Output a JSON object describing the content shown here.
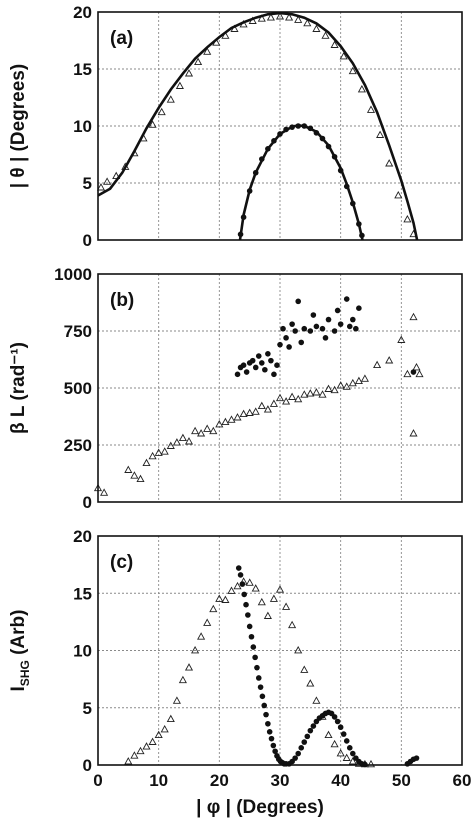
{
  "chart_data": [
    {
      "type": "scatter",
      "panel_label": "(a)",
      "ylabel": "| θ |  (Degrees)",
      "xlim": [
        0,
        60
      ],
      "ylim": [
        0,
        20
      ],
      "xticks": [
        0,
        10,
        20,
        30,
        40,
        50,
        60
      ],
      "yticks": [
        0,
        5,
        10,
        15,
        20
      ],
      "ytick_labels": [
        "0",
        "5",
        "10",
        "15",
        "20"
      ],
      "grid": true,
      "series": [
        {
          "marker": "triangle-open",
          "x": [
            0.5,
            1.5,
            3,
            4.5,
            6,
            7.5,
            9,
            10.5,
            12,
            13.5,
            15,
            16.5,
            18,
            19.5,
            21,
            22.5,
            24,
            25.5,
            27,
            28.5,
            30,
            31.5,
            33,
            34.5,
            36,
            37.5,
            39,
            40.5,
            42,
            43.5,
            45,
            46.5,
            48,
            49.5,
            51,
            52
          ],
          "y": [
            4.6,
            5.1,
            5.6,
            6.4,
            7.6,
            8.9,
            10.1,
            11.2,
            12.3,
            13.5,
            14.6,
            15.6,
            16.5,
            17.3,
            17.9,
            18.5,
            18.9,
            19.2,
            19.4,
            19.5,
            19.6,
            19.5,
            19.3,
            19.0,
            18.5,
            17.9,
            17.1,
            16.1,
            14.8,
            13.2,
            11.4,
            9.2,
            6.7,
            3.9,
            1.8,
            0.5
          ]
        },
        {
          "marker": "circle-filled",
          "x": [
            23.5,
            24,
            25,
            26,
            27,
            28,
            29,
            30,
            31,
            32,
            33,
            34,
            35,
            36,
            37,
            38,
            39,
            40,
            41,
            42,
            43,
            43.5
          ],
          "y": [
            0.5,
            2.0,
            4.3,
            5.9,
            7.1,
            8.0,
            8.7,
            9.3,
            9.7,
            9.9,
            10.0,
            10.0,
            9.8,
            9.4,
            8.9,
            8.2,
            7.3,
            6.1,
            4.7,
            3.2,
            1.4,
            0.4
          ]
        },
        {
          "marker": "line",
          "x": [
            0,
            2,
            4,
            6,
            8,
            10,
            12,
            14,
            16,
            18,
            20,
            22,
            24,
            26,
            28,
            30,
            32,
            34,
            36,
            38,
            40,
            42,
            44,
            46,
            48,
            50,
            51,
            52,
            52.6
          ],
          "y": [
            3.9,
            4.5,
            5.9,
            7.8,
            9.8,
            11.6,
            13.2,
            14.6,
            15.9,
            16.9,
            17.8,
            18.6,
            19.1,
            19.5,
            19.8,
            19.9,
            19.8,
            19.5,
            19.0,
            18.2,
            17.0,
            15.5,
            13.6,
            11.2,
            8.3,
            5.2,
            3.4,
            1.5,
            0
          ]
        },
        {
          "marker": "line",
          "x": [
            23.4,
            24,
            25,
            26,
            28,
            30,
            32,
            33,
            34,
            36,
            38,
            40,
            41,
            42,
            43,
            43.6
          ],
          "y": [
            0,
            2.2,
            4.4,
            5.9,
            8.0,
            9.3,
            9.95,
            10.05,
            10.0,
            9.5,
            8.3,
            6.3,
            4.9,
            3.3,
            1.4,
            0
          ]
        }
      ]
    },
    {
      "type": "scatter",
      "panel_label": "(b)",
      "ylabel": "β L (rad⁻¹)",
      "xlim": [
        0,
        60
      ],
      "ylim": [
        0,
        1000
      ],
      "xticks": [
        0,
        10,
        20,
        30,
        40,
        50,
        60
      ],
      "yticks": [
        0,
        250,
        500,
        750,
        1000
      ],
      "ytick_labels": [
        "0",
        "250",
        "500",
        "750",
        "1000"
      ],
      "grid": true,
      "series": [
        {
          "marker": "triangle-open",
          "x": [
            0,
            1,
            5,
            6,
            7,
            8,
            9,
            10,
            11,
            12,
            13,
            14,
            15,
            16,
            17,
            18,
            19,
            20,
            21,
            22,
            23,
            24,
            25,
            26,
            27,
            28,
            29,
            30,
            31,
            32,
            33,
            34,
            35,
            36,
            37,
            38,
            39,
            40,
            41,
            42,
            43,
            44,
            46,
            48,
            50,
            51,
            52,
            52,
            52.5,
            53
          ],
          "y": [
            60,
            40,
            140,
            115,
            100,
            170,
            200,
            215,
            220,
            245,
            260,
            280,
            265,
            310,
            300,
            320,
            310,
            340,
            350,
            360,
            370,
            385,
            390,
            395,
            420,
            405,
            430,
            455,
            440,
            460,
            450,
            470,
            475,
            480,
            470,
            495,
            490,
            510,
            505,
            520,
            530,
            540,
            600,
            620,
            710,
            560,
            810,
            300,
            590,
            560
          ]
        },
        {
          "marker": "circle-filled",
          "x": [
            23,
            23.5,
            24,
            24.5,
            25,
            25.5,
            26,
            26.5,
            27,
            27.5,
            28,
            28.5,
            29,
            29.5,
            30,
            30.5,
            31,
            31.5,
            32,
            32.5,
            33,
            33.5,
            34,
            35,
            35.5,
            36,
            37,
            37.5,
            38,
            39,
            39.5,
            40,
            41,
            41.5,
            42,
            42.5,
            43,
            52
          ],
          "y": [
            560,
            590,
            600,
            570,
            610,
            620,
            590,
            640,
            610,
            580,
            650,
            620,
            560,
            600,
            690,
            760,
            720,
            680,
            780,
            750,
            880,
            700,
            760,
            750,
            820,
            770,
            760,
            720,
            800,
            750,
            840,
            780,
            890,
            770,
            800,
            760,
            850,
            570
          ]
        }
      ]
    },
    {
      "type": "scatter",
      "panel_label": "(c)",
      "ylabel": "I_SHG (Arb)",
      "xlabel": "| φ |  (Degrees)",
      "xlim": [
        0,
        60
      ],
      "ylim": [
        0,
        20
      ],
      "xticks": [
        0,
        10,
        20,
        30,
        40,
        50,
        60
      ],
      "xtick_labels": [
        "0",
        "10",
        "20",
        "30",
        "40",
        "50",
        "60"
      ],
      "yticks": [
        0,
        5,
        10,
        15,
        20
      ],
      "ytick_labels": [
        "0",
        "5",
        "10",
        "15",
        "20"
      ],
      "grid": true,
      "series": [
        {
          "marker": "triangle-open",
          "x": [
            5,
            6,
            7,
            8,
            9,
            10,
            11,
            12,
            13,
            14,
            15,
            16,
            17,
            18,
            19,
            20,
            21,
            22,
            23,
            24,
            25,
            26,
            27,
            28,
            29,
            30,
            31,
            32,
            33,
            34,
            35,
            36,
            37,
            38,
            39,
            40,
            41,
            42,
            43,
            44,
            45
          ],
          "y": [
            0.3,
            0.8,
            1.2,
            1.6,
            2.0,
            2.6,
            3.1,
            4.0,
            5.6,
            7.4,
            8.5,
            10.0,
            11.2,
            12.4,
            13.6,
            14.5,
            14.4,
            15.2,
            15.6,
            16.0,
            15.9,
            15.4,
            14.2,
            13.0,
            14.5,
            15.3,
            13.8,
            12.2,
            10.0,
            8.3,
            7.1,
            5.6,
            4.2,
            2.6,
            1.8,
            1.0,
            0.6,
            0.3,
            0.1,
            0.05,
            0.05
          ]
        },
        {
          "marker": "circle-filled",
          "x": [
            23.2,
            23.5,
            23.8,
            24.1,
            24.4,
            24.7,
            25,
            25.3,
            25.6,
            25.9,
            26.2,
            26.5,
            26.8,
            27.1,
            27.4,
            27.7,
            28,
            28.3,
            28.6,
            28.9,
            29.2,
            29.5,
            29.8,
            30.1,
            30.4,
            30.7,
            31,
            31.5,
            32,
            32.5,
            33,
            33.5,
            34,
            34.5,
            35,
            35.5,
            36,
            36.5,
            37,
            37.5,
            38,
            38.5,
            39,
            39.5,
            40,
            40.5,
            41,
            41.5,
            42,
            42.5,
            43,
            43.5,
            44,
            51,
            51.5,
            52,
            52.5
          ],
          "y": [
            17.2,
            16.6,
            15.8,
            14.9,
            14.0,
            13.1,
            12.1,
            11.2,
            10.3,
            9.4,
            8.5,
            7.6,
            6.8,
            6.0,
            5.2,
            4.4,
            3.6,
            2.9,
            2.3,
            1.7,
            1.2,
            0.8,
            0.5,
            0.3,
            0.2,
            0.1,
            0.1,
            0.1,
            0.3,
            0.6,
            1.0,
            1.5,
            2.0,
            2.5,
            3.0,
            3.4,
            3.8,
            4.1,
            4.3,
            4.5,
            4.6,
            4.5,
            4.2,
            3.8,
            3.3,
            2.7,
            2.1,
            1.5,
            1.0,
            0.6,
            0.3,
            0.1,
            0.05,
            0.1,
            0.3,
            0.5,
            0.6
          ]
        }
      ]
    }
  ]
}
